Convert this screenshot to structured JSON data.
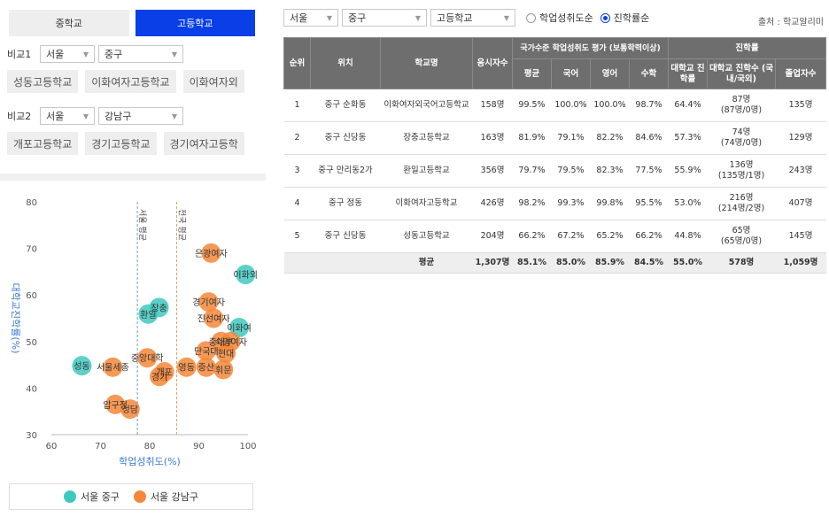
{
  "tabs": [
    {
      "label": "중학교",
      "active": false
    },
    {
      "label": "고등학교",
      "active": true
    }
  ],
  "compare1": {
    "label": "비교1",
    "region": "서울",
    "district": "중구",
    "schools": [
      "성동고등학교",
      "이화여자고등학교",
      "이화여자외"
    ]
  },
  "compare2": {
    "label": "비교2",
    "region": "서울",
    "district": "강남구",
    "schools": [
      "개포고등학교",
      "경기고등학교",
      "경기여자고등학"
    ]
  },
  "filters": {
    "region": "서울",
    "district": "중구",
    "level": "고등학교",
    "radio": [
      {
        "label": "학업성취도순",
        "checked": false
      },
      {
        "label": "진학률순",
        "checked": true
      }
    ],
    "source": "출처 : 학교알리미"
  },
  "table": {
    "headers": {
      "rank": "순위",
      "location": "위치",
      "school": "학교명",
      "examinees": "응시자수",
      "achievement_group": "국가수준 학업성취도 평가 (보통학력이상)",
      "avg": "평균",
      "korean": "국어",
      "english": "영어",
      "math": "수학",
      "advancement_group": "진학률",
      "univ_rate": "대학교 진학률",
      "univ_count": "대학교 진학수 (국내/국외)",
      "graduates": "졸업자수"
    },
    "rows": [
      {
        "rank": "1",
        "location": "중구 순화동",
        "school": "이화여자외국어고등학교",
        "examinees": "158명",
        "avg": "99.5%",
        "korean": "100.0%",
        "english": "100.0%",
        "math": "98.7%",
        "univ_rate": "64.4%",
        "univ_count": "87명",
        "univ_split": "(87명/0명)",
        "graduates": "135명"
      },
      {
        "rank": "2",
        "location": "중구 신당동",
        "school": "장충고등학교",
        "examinees": "163명",
        "avg": "81.9%",
        "korean": "79.1%",
        "english": "82.2%",
        "math": "84.6%",
        "univ_rate": "57.3%",
        "univ_count": "74명",
        "univ_split": "(74명/0명)",
        "graduates": "129명"
      },
      {
        "rank": "3",
        "location": "중구 만리동2가",
        "school": "환일고등학교",
        "examinees": "356명",
        "avg": "79.7%",
        "korean": "79.5%",
        "english": "82.3%",
        "math": "77.5%",
        "univ_rate": "55.9%",
        "univ_count": "136명",
        "univ_split": "(135명/1명)",
        "graduates": "243명"
      },
      {
        "rank": "4",
        "location": "중구 정동",
        "school": "이화여자고등학교",
        "examinees": "426명",
        "avg": "98.2%",
        "korean": "99.3%",
        "english": "99.8%",
        "math": "95.5%",
        "univ_rate": "53.0%",
        "univ_count": "216명",
        "univ_split": "(214명/2명)",
        "graduates": "407명"
      },
      {
        "rank": "5",
        "location": "중구 신당동",
        "school": "성동고등학교",
        "examinees": "204명",
        "avg": "66.2%",
        "korean": "67.2%",
        "english": "65.2%",
        "math": "66.2%",
        "univ_rate": "44.8%",
        "univ_count": "65명",
        "univ_split": "(65명/0명)",
        "graduates": "145명"
      }
    ],
    "average": {
      "label": "평균",
      "examinees": "1,307명",
      "avg": "85.1%",
      "korean": "85.0%",
      "english": "85.9%",
      "math": "84.5%",
      "univ_rate": "55.0%",
      "univ_count": "578명",
      "graduates": "1,059명"
    }
  },
  "chart_data": {
    "type": "scatter",
    "xlabel": "학업성취도(%)",
    "ylabel": "대학교진학률(%)",
    "xlim": [
      60,
      100
    ],
    "ylim": [
      30,
      80
    ],
    "xticks": [
      "60",
      "70",
      "80",
      "90",
      "100"
    ],
    "yticks": [
      "30",
      "40",
      "50",
      "60",
      "70",
      "80"
    ],
    "ref_lines": [
      {
        "label": "서울 평균",
        "x": 77.5,
        "color": "#6a9fd4"
      },
      {
        "label": "전국 평균",
        "x": 85.5,
        "color": "#e0a060"
      }
    ],
    "series": [
      {
        "name": "서울 중구",
        "color": "#3ec9c0",
        "points": [
          {
            "label": "장충",
            "x": 81.9,
            "y": 57.3
          },
          {
            "label": "환일",
            "x": 79.7,
            "y": 55.9
          },
          {
            "label": "이화여",
            "x": 98.2,
            "y": 53.0
          },
          {
            "label": "성동",
            "x": 66.2,
            "y": 44.8
          },
          {
            "label": "이화외",
            "x": 99.5,
            "y": 64.4
          }
        ]
      },
      {
        "name": "서울 강남구",
        "color": "#f5873a",
        "points": [
          {
            "label": "은광여자",
            "x": 92.5,
            "y": 69
          },
          {
            "label": "경기여자",
            "x": 92,
            "y": 58.5
          },
          {
            "label": "진선여자",
            "x": 93,
            "y": 55
          },
          {
            "label": "숙명여자",
            "x": 96.5,
            "y": 50
          },
          {
            "label": "중대부",
            "x": 94.5,
            "y": 50
          },
          {
            "label": "단국대",
            "x": 91.5,
            "y": 48
          },
          {
            "label": "현대",
            "x": 95.5,
            "y": 47.5
          },
          {
            "label": "중앙대학",
            "x": 79.5,
            "y": 46.5
          },
          {
            "label": "서울세종",
            "x": 72.5,
            "y": 44.5
          },
          {
            "label": "영동",
            "x": 87.5,
            "y": 44.5
          },
          {
            "label": "중산",
            "x": 91.5,
            "y": 44.5
          },
          {
            "label": "휘문",
            "x": 95,
            "y": 44
          },
          {
            "label": "개포",
            "x": 83,
            "y": 43.5
          },
          {
            "label": "경기",
            "x": 82,
            "y": 42.5
          },
          {
            "label": "압구정",
            "x": 73,
            "y": 36.5
          },
          {
            "label": "청담",
            "x": 76,
            "y": 35.5
          }
        ]
      }
    ]
  }
}
